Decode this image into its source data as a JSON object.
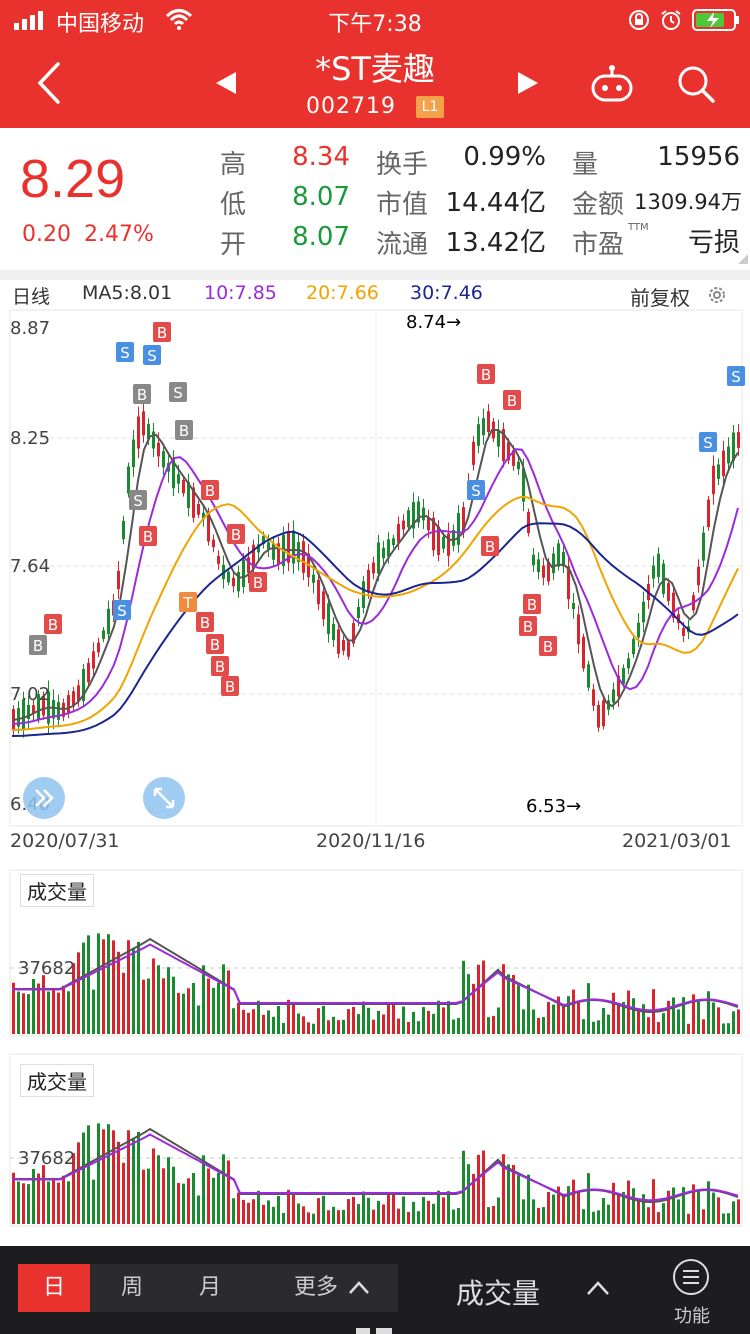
{
  "status_bar": {
    "carrier": "中国移动",
    "time": "下午7:38"
  },
  "header": {
    "stock_name": "*ST麦趣",
    "stock_code": "002719",
    "code_badge": "L1"
  },
  "quote": {
    "last_price": "8.29",
    "change": "0.20",
    "change_pct": "2.47%",
    "high_label": "高",
    "high": "8.34",
    "low_label": "低",
    "low": "8.07",
    "open_label": "开",
    "open": "8.07",
    "turnover_label": "换手",
    "turnover": "0.99%",
    "mktcap_label": "市值",
    "mktcap": "14.44亿",
    "float_label": "流通",
    "float": "13.42亿",
    "volume_label": "量",
    "volume": "15956",
    "amount_label": "金额",
    "amount": "1309.94万",
    "pe_label": "市盈",
    "pe_sup": "TTM",
    "pe": "亏损"
  },
  "chart": {
    "period": "日线",
    "ma5": "MA5:8.01",
    "ma10": "10:7.85",
    "ma20": "20:7.66",
    "ma30": "30:7.46",
    "adjust": "前复权",
    "y_ticks": [
      "8.87",
      "8.25",
      "7.64",
      "7.02",
      "6.40"
    ],
    "high_marker": "8.74→",
    "low_marker": "6.53→",
    "dates": [
      "2020/07/31",
      "2020/11/16",
      "2021/03/01"
    ],
    "colors": {
      "ma5": "#555555",
      "ma10": "#9b2bdc",
      "ma20": "#f0a400",
      "ma30": "#1c2590",
      "up": "#d9232d",
      "down": "#1a8a2f"
    }
  },
  "volume_panels": [
    {
      "label": "成交量",
      "tick": "37682"
    },
    {
      "label": "成交量",
      "tick": "37682"
    }
  ],
  "bottom_bar": {
    "periods": [
      "日",
      "周",
      "月",
      "更多"
    ],
    "indicator": "成交量",
    "function_label": "功能"
  }
}
